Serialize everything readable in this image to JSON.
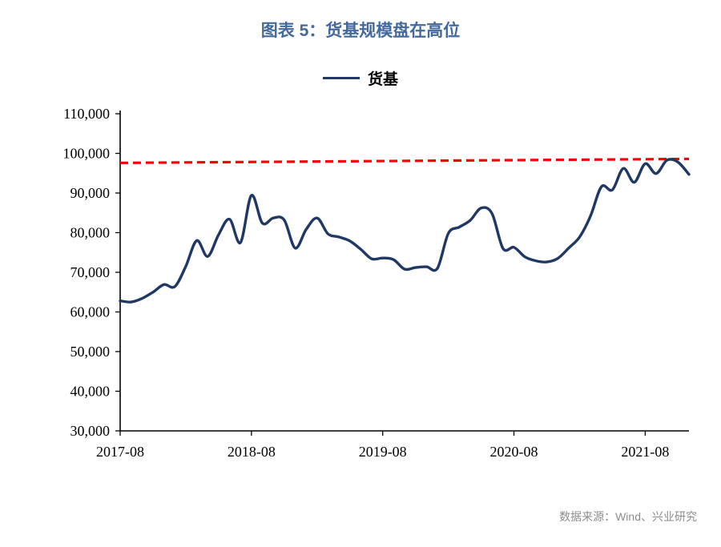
{
  "title": "图表 5：货基规模盘在高位",
  "legend": {
    "label": "货基"
  },
  "source": "数据来源：Wind、兴业研究",
  "colors": {
    "title": "#44699D",
    "series": "#1F3864",
    "trend": "#FF0000",
    "axis": "#000000",
    "source_text": "#8C8C8C"
  },
  "chart_data": {
    "type": "line",
    "title": "图表 5：货基规模盘在高位",
    "x": [
      "2017-08",
      "2017-09",
      "2017-10",
      "2017-11",
      "2017-12",
      "2018-01",
      "2018-02",
      "2018-03",
      "2018-04",
      "2018-05",
      "2018-06",
      "2018-07",
      "2018-08",
      "2018-09",
      "2018-10",
      "2018-11",
      "2018-12",
      "2019-01",
      "2019-02",
      "2019-03",
      "2019-04",
      "2019-05",
      "2019-06",
      "2019-07",
      "2019-08",
      "2019-09",
      "2019-10",
      "2019-11",
      "2019-12",
      "2020-01",
      "2020-02",
      "2020-03",
      "2020-04",
      "2020-05",
      "2020-06",
      "2020-07",
      "2020-08",
      "2020-09",
      "2020-10",
      "2020-11",
      "2020-12",
      "2021-01",
      "2021-02",
      "2021-03",
      "2021-04",
      "2021-05",
      "2021-06",
      "2021-07",
      "2021-08",
      "2021-09",
      "2021-10",
      "2021-11",
      "2021-12"
    ],
    "series": [
      {
        "name": "货基",
        "color": "#1F3864",
        "values": [
          62800,
          62500,
          63400,
          65000,
          66900,
          66400,
          71500,
          78000,
          74000,
          79500,
          83400,
          77500,
          89400,
          82400,
          83700,
          83200,
          76100,
          80800,
          83700,
          79700,
          78900,
          77900,
          75800,
          73400,
          73600,
          73200,
          70800,
          71200,
          71400,
          71000,
          79800,
          81400,
          83100,
          86200,
          84800,
          76000,
          76300,
          73900,
          72900,
          72600,
          73500,
          76100,
          78900,
          84200,
          91600,
          90800,
          96200,
          92700,
          97400,
          94900,
          98300,
          97800,
          94700
        ]
      }
    ],
    "trend_line": {
      "name": "reference-level",
      "style": "dashed",
      "color": "#FF0000",
      "start_value": 97600,
      "end_value": 98600
    },
    "ylim": [
      30000,
      110000
    ],
    "y_ticks": [
      30000,
      40000,
      50000,
      60000,
      70000,
      80000,
      90000,
      100000,
      110000
    ],
    "x_tick_labels": [
      "2017-08",
      "2018-08",
      "2019-08",
      "2020-08",
      "2021-08"
    ],
    "x_tick_indices": [
      0,
      12,
      24,
      36,
      48
    ],
    "grid": false,
    "legend_position": "top"
  }
}
